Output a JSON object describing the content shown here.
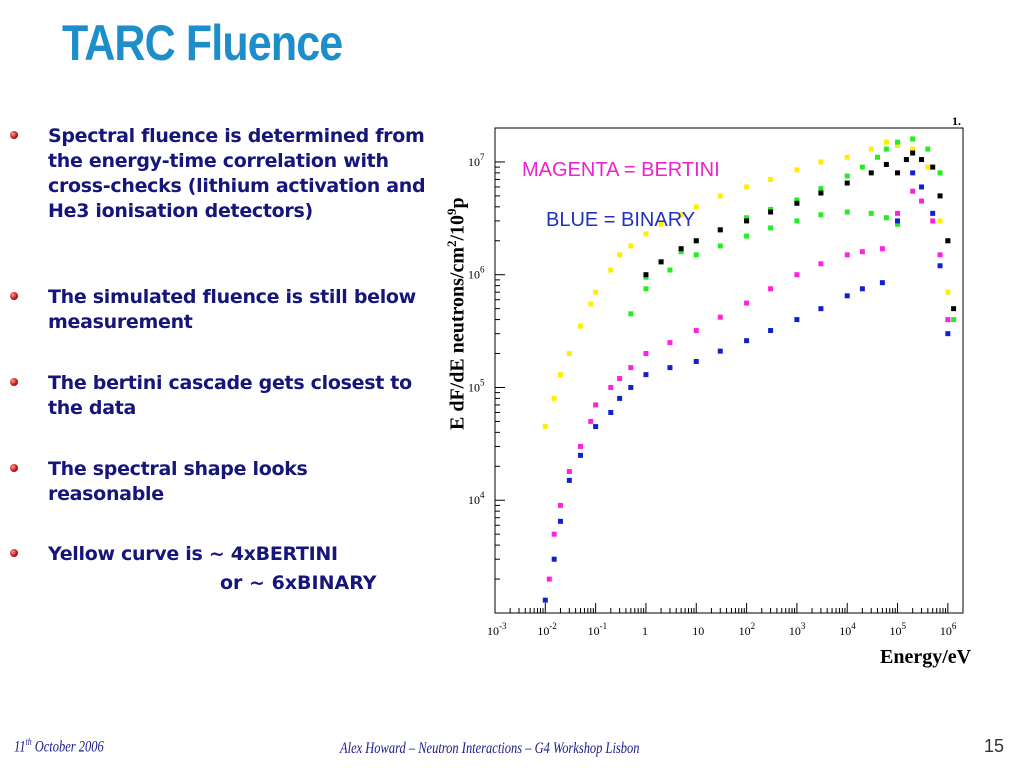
{
  "slide": {
    "title": "TARC Fluence",
    "bullets": [
      "Spectral fluence is determined from the energy-time correlation with cross-checks (lithium activation and He3 ionisation detectors)",
      "The simulated fluence is still below measurement",
      "The bertini cascade gets closest to the data",
      "The spectral shape looks reasonable",
      "Yellow curve is ~ 4xBERTINI"
    ],
    "bullet_continuation": "or ~ 6xBINARY",
    "footer": {
      "date_day": "11",
      "date_sup": "th",
      "date_rest": " October 2006",
      "center": "Alex Howard – Neutron Interactions – G4 Workshop Lisbon",
      "page_number": "15"
    }
  },
  "chart_data": {
    "type": "scatter",
    "xlabel": "Energy/eV",
    "ylabel_main": "E dF/dE neutrons/cm",
    "ylabel_sup1": "2",
    "ylabel_mid": "/10",
    "ylabel_sup2": "9",
    "ylabel_end": "p",
    "corner_label": "1.",
    "x_scale": "log",
    "y_scale": "log",
    "xlim": [
      0.001,
      2000000
    ],
    "ylim": [
      1000,
      20000000
    ],
    "x_ticks": [
      {
        "base": "10",
        "exp": "-3"
      },
      {
        "base": "10",
        "exp": "-2"
      },
      {
        "base": "10",
        "exp": "-1"
      },
      {
        "base": "1",
        "exp": ""
      },
      {
        "base": "10",
        "exp": ""
      },
      {
        "base": "10",
        "exp": "2"
      },
      {
        "base": "10",
        "exp": "3"
      },
      {
        "base": "10",
        "exp": "4"
      },
      {
        "base": "10",
        "exp": "5"
      },
      {
        "base": "10",
        "exp": "6"
      }
    ],
    "y_ticks": [
      {
        "base": "10",
        "exp": "4"
      },
      {
        "base": "10",
        "exp": "5"
      },
      {
        "base": "10",
        "exp": "6"
      },
      {
        "base": "10",
        "exp": "7"
      }
    ],
    "annotations": [
      "MAGENTA = BERTINI",
      "BLUE = BINARY"
    ],
    "series": [
      {
        "color": "#ffee00",
        "x": [
          0.01,
          0.015,
          0.02,
          0.03,
          0.05,
          0.08,
          0.1,
          0.2,
          0.3,
          0.5,
          1,
          2,
          5,
          10,
          30,
          100,
          300,
          1000,
          3000,
          10000,
          30000,
          60000,
          100000,
          200000,
          400000,
          700000,
          1000000
        ],
        "y": [
          45000,
          80000,
          130000,
          200000,
          350000,
          550000,
          700000,
          1100000,
          1500000,
          1800000,
          2300000,
          2800000,
          3400000,
          4000000,
          5000000,
          6000000,
          7000000,
          8500000,
          10000000,
          11000000,
          13000000,
          15000000,
          14000000,
          13000000,
          9000000,
          3000000,
          700000
        ]
      },
      {
        "color": "#22ee22",
        "x": [
          0.5,
          1,
          2,
          5,
          10,
          30,
          100,
          300,
          1000,
          3000,
          10000,
          20000,
          40000,
          60000,
          100000,
          200000,
          400000,
          700000,
          1000000,
          1300000
        ],
        "y": [
          450000,
          950000,
          1300000,
          1600000,
          2000000,
          2500000,
          3200000,
          3800000,
          4600000,
          5800000,
          7500000,
          9000000,
          11000000,
          13000000,
          15000000,
          16000000,
          13000000,
          8000000,
          2000000,
          400000
        ]
      },
      {
        "color": "#22ee22",
        "x": [
          1,
          3,
          10,
          30,
          100,
          300,
          1000,
          3000,
          10000,
          30000,
          60000,
          100000
        ],
        "y": [
          750000,
          1100000,
          1500000,
          1800000,
          2200000,
          2600000,
          3000000,
          3400000,
          3600000,
          3500000,
          3200000,
          2800000
        ]
      },
      {
        "color": "#000000",
        "x": [
          1,
          2,
          5,
          10,
          30,
          100,
          300,
          1000,
          3000,
          10000,
          30000,
          60000,
          100000,
          150000,
          200000,
          300000,
          500000,
          700000,
          1000000,
          1300000
        ],
        "y": [
          1000000,
          1300000,
          1700000,
          2000000,
          2500000,
          3000000,
          3600000,
          4300000,
          5300000,
          6500000,
          8000000,
          9500000,
          8000000,
          10500000,
          12000000,
          10500000,
          9000000,
          5000000,
          2000000,
          500000
        ]
      },
      {
        "color": "#ff22dd",
        "x": [
          0.012,
          0.015,
          0.02,
          0.03,
          0.05,
          0.08,
          0.1,
          0.2,
          0.3,
          0.5,
          1,
          3,
          10,
          30,
          100,
          300,
          1000,
          3000,
          10000,
          20000,
          50000,
          100000,
          200000,
          300000,
          500000,
          700000,
          1000000
        ],
        "y": [
          2000,
          5000,
          9000,
          18000,
          30000,
          50000,
          70000,
          100000,
          120000,
          150000,
          200000,
          250000,
          320000,
          420000,
          560000,
          750000,
          1000000,
          1250000,
          1500000,
          1600000,
          1700000,
          3500000,
          5500000,
          4500000,
          3000000,
          1500000,
          400000
        ]
      },
      {
        "color": "#1122cc",
        "x": [
          0.01,
          0.015,
          0.02,
          0.03,
          0.05,
          0.1,
          0.2,
          0.3,
          0.5,
          1,
          3,
          10,
          30,
          100,
          300,
          1000,
          3000,
          10000,
          20000,
          50000,
          100000,
          200000,
          300000,
          500000,
          700000,
          1000000
        ],
        "y": [
          1300,
          3000,
          6500,
          15000,
          25000,
          45000,
          60000,
          80000,
          100000,
          130000,
          150000,
          170000,
          210000,
          260000,
          320000,
          400000,
          500000,
          650000,
          750000,
          850000,
          3000000,
          8000000,
          6000000,
          3500000,
          1200000,
          300000
        ]
      }
    ]
  }
}
